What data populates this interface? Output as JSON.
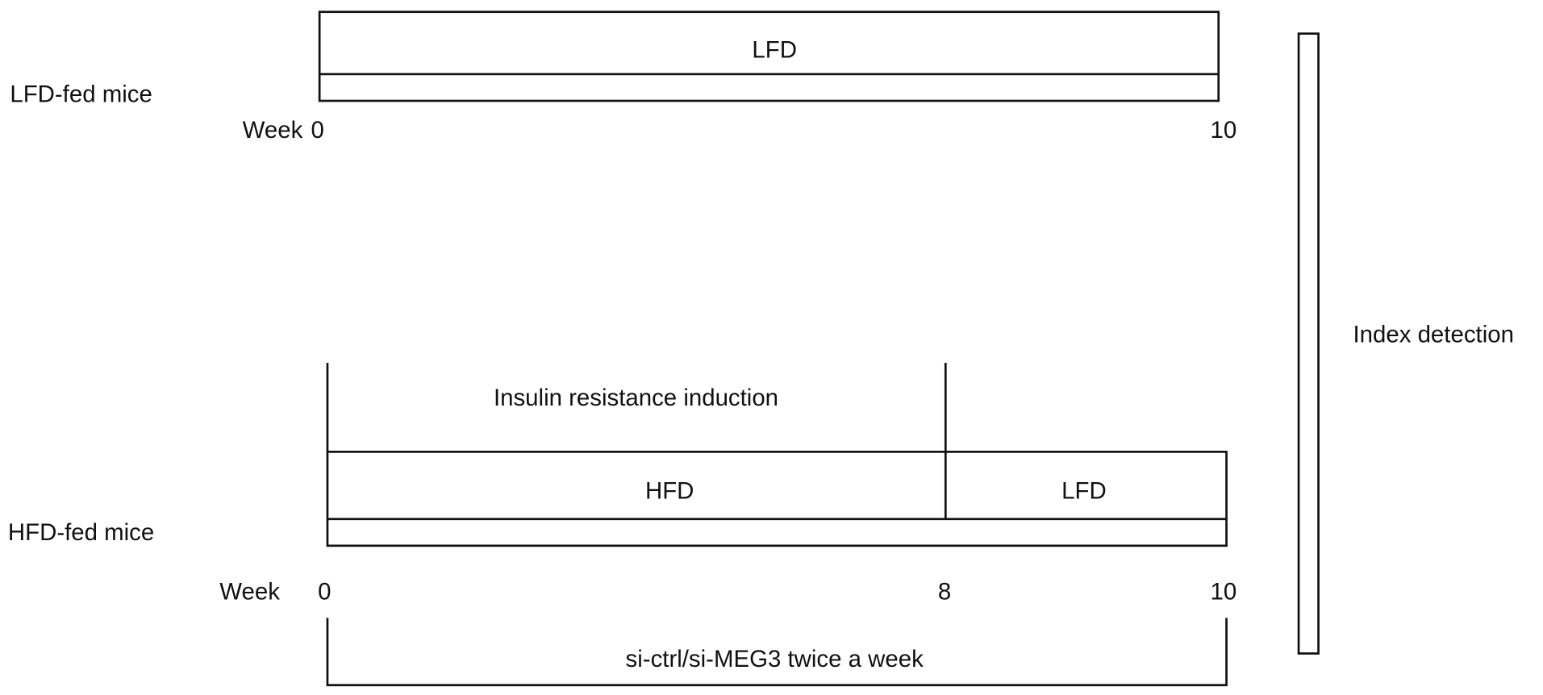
{
  "lfd_group": {
    "label": "LFD-fed mice",
    "bar_label": "LFD",
    "week_label": "Week",
    "ticks": [
      "0",
      "10"
    ]
  },
  "hfd_group": {
    "label": "HFD-fed mice",
    "phase_label": "Insulin resistance induction",
    "segments": [
      "HFD",
      "LFD"
    ],
    "week_label": "Week",
    "ticks": [
      "0",
      "8",
      "10"
    ],
    "treatment": "si-ctrl/si-MEG3 twice a week"
  },
  "endpoint": "Index detection"
}
